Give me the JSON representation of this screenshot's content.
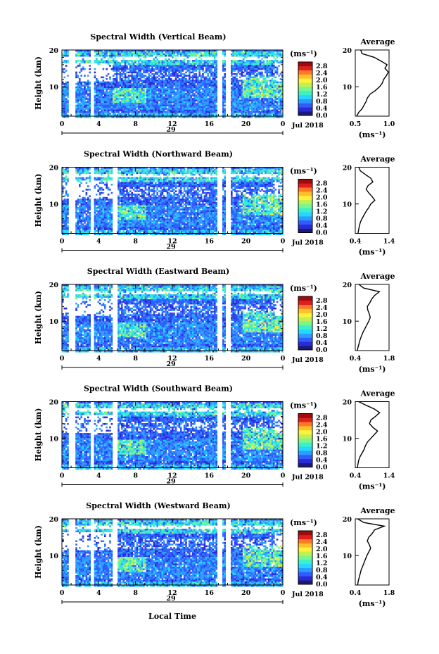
{
  "shared": {
    "unit_label": "(ms⁻¹)",
    "month_label": "Jul 2018",
    "x_tick_labels": [
      "0",
      "4",
      "8",
      "12",
      "16",
      "20",
      "0"
    ],
    "y_tick_labels": [
      "20",
      "10"
    ],
    "y_axis_label": "Height (km)",
    "x_axis_label": "Local Time",
    "colorbar_labels": [
      "2.8",
      "2.4",
      "2.0",
      "1.6",
      "1.2",
      "0.8",
      "0.4",
      "0.0"
    ],
    "average_title": "Average",
    "average_unit": "(ms⁻¹)",
    "colors": [
      "#1a1a7a",
      "#2b2bd6",
      "#2f5cff",
      "#2e9bff",
      "#22d8ff",
      "#3cf0c8",
      "#7cf58c",
      "#c2f050",
      "#fff23a",
      "#ffc02a",
      "#ff7a22",
      "#e01e1e",
      "#a00a0a"
    ]
  },
  "chart_data": [
    {
      "type": "heatmap",
      "title": "Spectral Width (Vertical Beam)",
      "day_label": "29",
      "x_range_hours": [
        0,
        24
      ],
      "y_range_km": [
        2,
        20
      ],
      "color_range": [
        0.0,
        3.0
      ],
      "data_gaps_hours": [
        [
          0.7,
          1.4
        ],
        [
          3.1,
          3.4
        ],
        [
          16.8,
          17.3
        ],
        [
          17.7,
          18.2
        ]
      ],
      "average_profile": {
        "xlim": [
          0.5,
          1.0
        ],
        "x_tick_labels": [
          "0.5",
          "1.0"
        ],
        "height_km": [
          2,
          3,
          4,
          5,
          6,
          7,
          8,
          9,
          10,
          11,
          12,
          13,
          14,
          15,
          16,
          17,
          18,
          19,
          20
        ],
        "width": [
          0.52,
          0.55,
          0.6,
          0.63,
          0.66,
          0.68,
          0.72,
          0.8,
          0.86,
          0.9,
          0.92,
          0.96,
          0.99,
          0.94,
          0.97,
          0.88,
          0.78,
          0.6,
          0.58
        ]
      }
    },
    {
      "type": "heatmap",
      "title": "Spectral Width (Northward Beam)",
      "day_label": "29",
      "x_range_hours": [
        0,
        24
      ],
      "y_range_km": [
        2,
        20
      ],
      "color_range": [
        0.0,
        3.0
      ],
      "data_gaps_hours": [
        [
          0.7,
          1.4
        ],
        [
          3.1,
          3.4
        ],
        [
          5.5,
          5.9
        ],
        [
          16.8,
          17.3
        ],
        [
          17.7,
          18.2
        ]
      ],
      "average_profile": {
        "xlim": [
          0.4,
          1.4
        ],
        "x_tick_labels": [
          "0.4",
          "1.4"
        ],
        "height_km": [
          2,
          3,
          4,
          5,
          6,
          7,
          8,
          9,
          10,
          11,
          12,
          13,
          14,
          15,
          16,
          17,
          18,
          19,
          20
        ],
        "width": [
          0.48,
          0.5,
          0.52,
          0.55,
          0.6,
          0.66,
          0.72,
          0.8,
          0.86,
          0.98,
          0.9,
          0.8,
          0.72,
          0.78,
          0.92,
          0.86,
          0.7,
          0.55,
          0.5
        ]
      }
    },
    {
      "type": "heatmap",
      "title": "Spectral Width (Eastward Beam)",
      "day_label": "29",
      "x_range_hours": [
        0,
        24
      ],
      "y_range_km": [
        2,
        20
      ],
      "color_range": [
        0.0,
        3.0
      ],
      "data_gaps_hours": [
        [
          0.7,
          1.4
        ],
        [
          3.1,
          3.4
        ],
        [
          5.5,
          5.9
        ],
        [
          16.8,
          17.3
        ],
        [
          17.7,
          18.2
        ]
      ],
      "average_profile": {
        "xlim": [
          0.4,
          1.8
        ],
        "x_tick_labels": [
          "0.4",
          "1.8"
        ],
        "height_km": [
          2,
          3,
          4,
          5,
          6,
          7,
          8,
          9,
          10,
          11,
          12,
          13,
          14,
          15,
          16,
          17,
          18,
          19,
          20
        ],
        "width": [
          0.48,
          0.52,
          0.56,
          0.6,
          0.66,
          0.72,
          0.8,
          0.88,
          0.96,
          1.02,
          0.98,
          0.92,
          0.9,
          1.0,
          1.08,
          1.2,
          1.4,
          0.75,
          0.55
        ]
      }
    },
    {
      "type": "heatmap",
      "title": "Spectral Width (Southward Beam)",
      "day_label": "29",
      "x_range_hours": [
        0,
        24
      ],
      "y_range_km": [
        2,
        20
      ],
      "color_range": [
        0.0,
        3.0
      ],
      "data_gaps_hours": [
        [
          0.7,
          1.4
        ],
        [
          3.1,
          3.4
        ],
        [
          5.5,
          5.9
        ],
        [
          16.8,
          17.3
        ],
        [
          17.7,
          18.2
        ]
      ],
      "average_profile": {
        "xlim": [
          0.4,
          1.4
        ],
        "x_tick_labels": [
          "0.4",
          "1.4"
        ],
        "height_km": [
          2,
          3,
          4,
          5,
          6,
          7,
          8,
          9,
          10,
          11,
          12,
          13,
          14,
          15,
          16,
          17,
          18,
          19,
          20
        ],
        "width": [
          0.46,
          0.48,
          0.5,
          0.54,
          0.6,
          0.66,
          0.7,
          0.76,
          0.86,
          0.96,
          1.06,
          0.92,
          0.82,
          0.86,
          1.0,
          1.12,
          0.96,
          0.72,
          0.5
        ]
      }
    },
    {
      "type": "heatmap",
      "title": "Spectral Width (Westward Beam)",
      "day_label": "29",
      "x_range_hours": [
        0,
        24
      ],
      "y_range_km": [
        2,
        20
      ],
      "color_range": [
        0.0,
        3.0
      ],
      "data_gaps_hours": [
        [
          0.7,
          1.4
        ],
        [
          3.1,
          3.4
        ],
        [
          5.5,
          5.9
        ],
        [
          16.8,
          17.3
        ],
        [
          17.7,
          18.2
        ]
      ],
      "average_profile": {
        "xlim": [
          0.4,
          1.8
        ],
        "x_tick_labels": [
          "0.4",
          "1.8"
        ],
        "height_km": [
          2,
          3,
          4,
          5,
          6,
          7,
          8,
          9,
          10,
          11,
          12,
          13,
          14,
          15,
          16,
          17,
          18,
          19,
          20
        ],
        "width": [
          0.5,
          0.52,
          0.56,
          0.6,
          0.64,
          0.7,
          0.76,
          0.82,
          0.88,
          0.96,
          1.04,
          0.98,
          0.9,
          0.96,
          1.1,
          1.2,
          1.6,
          0.75,
          0.5
        ]
      }
    }
  ]
}
